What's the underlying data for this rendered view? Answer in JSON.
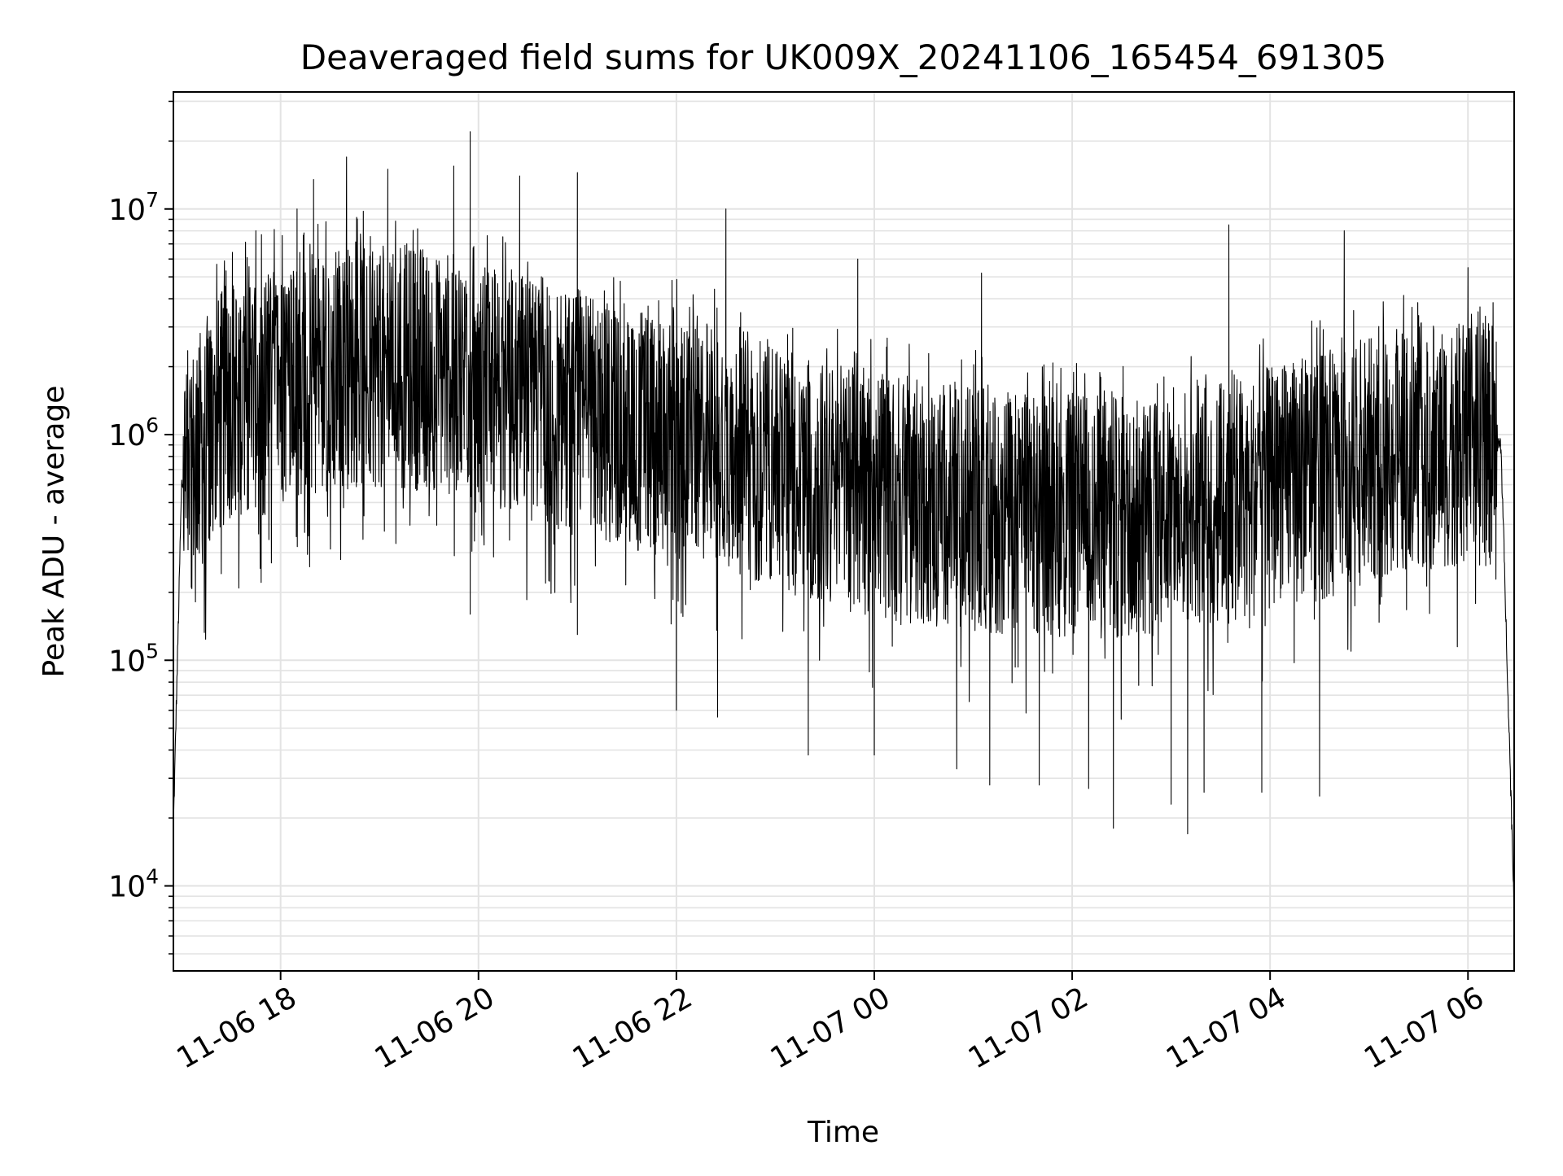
{
  "chart_data": {
    "type": "line",
    "title": "Deaveraged field sums for UK009X_20241106_165454_691305",
    "xlabel": "Time",
    "ylabel": "Peak ADU - average",
    "y_scale": "log",
    "ylim": [
      4200,
      33000000
    ],
    "xlim": [
      "2024-11-06 16:55",
      "2024-11-07 06:28"
    ],
    "grid": true,
    "legend": "none",
    "x_ticks": [
      "11-06 18",
      "11-06 20",
      "11-06 22",
      "11-07 00",
      "11-07 02",
      "11-07 04",
      "11-07 06"
    ],
    "x_tick_times": [
      "2024-11-06 18:00",
      "2024-11-06 20:00",
      "2024-11-06 22:00",
      "2024-11-07 00:00",
      "2024-11-07 02:00",
      "2024-11-07 04:00",
      "2024-11-07 06:00"
    ],
    "y_ticks": [
      {
        "base": "10",
        "exp": "4",
        "value": 10000
      },
      {
        "base": "10",
        "exp": "5",
        "value": 100000
      },
      {
        "base": "10",
        "exp": "6",
        "value": 1000000
      },
      {
        "base": "10",
        "exp": "7",
        "value": 10000000
      }
    ],
    "series": [
      {
        "color": "#000000",
        "trend": [
          [
            "2024-11-06 16:55",
            18000
          ],
          [
            "2024-11-06 17:00",
            600000
          ],
          [
            "2024-11-06 17:30",
            1500000
          ],
          [
            "2024-11-06 18:30",
            2000000
          ],
          [
            "2024-11-06 19:30",
            2000000
          ],
          [
            "2024-11-06 20:30",
            1400000
          ],
          [
            "2024-11-06 21:30",
            1100000
          ],
          [
            "2024-11-06 22:30",
            900000
          ],
          [
            "2024-11-06 23:30",
            600000
          ],
          [
            "2024-11-07 00:30",
            500000
          ],
          [
            "2024-11-07 01:30",
            450000
          ],
          [
            "2024-11-07 02:30",
            420000
          ],
          [
            "2024-11-07 03:30",
            500000
          ],
          [
            "2024-11-07 04:30",
            650000
          ],
          [
            "2024-11-07 05:30",
            900000
          ],
          [
            "2024-11-07 06:20",
            900000
          ],
          [
            "2024-11-07 06:28",
            8000
          ]
        ],
        "spikes": [
          [
            "2024-11-06 17:45",
            8000000
          ],
          [
            "2024-11-06 18:10",
            10000000
          ],
          [
            "2024-11-06 18:20",
            13500000
          ],
          [
            "2024-11-06 18:40",
            17000000
          ],
          [
            "2024-11-06 19:05",
            15000000
          ],
          [
            "2024-11-06 19:45",
            15500000
          ],
          [
            "2024-11-06 19:55",
            22000000
          ],
          [
            "2024-11-06 20:25",
            14000000
          ],
          [
            "2024-11-06 21:00",
            14500000
          ],
          [
            "2024-11-06 22:30",
            10000000
          ],
          [
            "2024-11-06 23:50",
            6000000
          ],
          [
            "2024-11-07 01:05",
            5200000
          ],
          [
            "2024-11-07 03:35",
            8500000
          ],
          [
            "2024-11-07 04:45",
            8000000
          ],
          [
            "2024-11-07 06:00",
            5500000
          ],
          [
            "2024-11-06 19:55",
            160000
          ],
          [
            "2024-11-06 21:00",
            130000
          ],
          [
            "2024-11-06 22:00",
            60000
          ],
          [
            "2024-11-06 22:25",
            56000
          ],
          [
            "2024-11-06 23:20",
            38000
          ],
          [
            "2024-11-07 00:00",
            38000
          ],
          [
            "2024-11-07 00:50",
            33000
          ],
          [
            "2024-11-07 01:10",
            28000
          ],
          [
            "2024-11-07 01:40",
            28000
          ],
          [
            "2024-11-07 02:10",
            27000
          ],
          [
            "2024-11-07 02:25",
            18000
          ],
          [
            "2024-11-07 03:00",
            23000
          ],
          [
            "2024-11-07 03:10",
            17000
          ],
          [
            "2024-11-07 03:20",
            26000
          ],
          [
            "2024-11-07 03:55",
            26000
          ],
          [
            "2024-11-07 04:30",
            25000
          ]
        ]
      }
    ]
  }
}
